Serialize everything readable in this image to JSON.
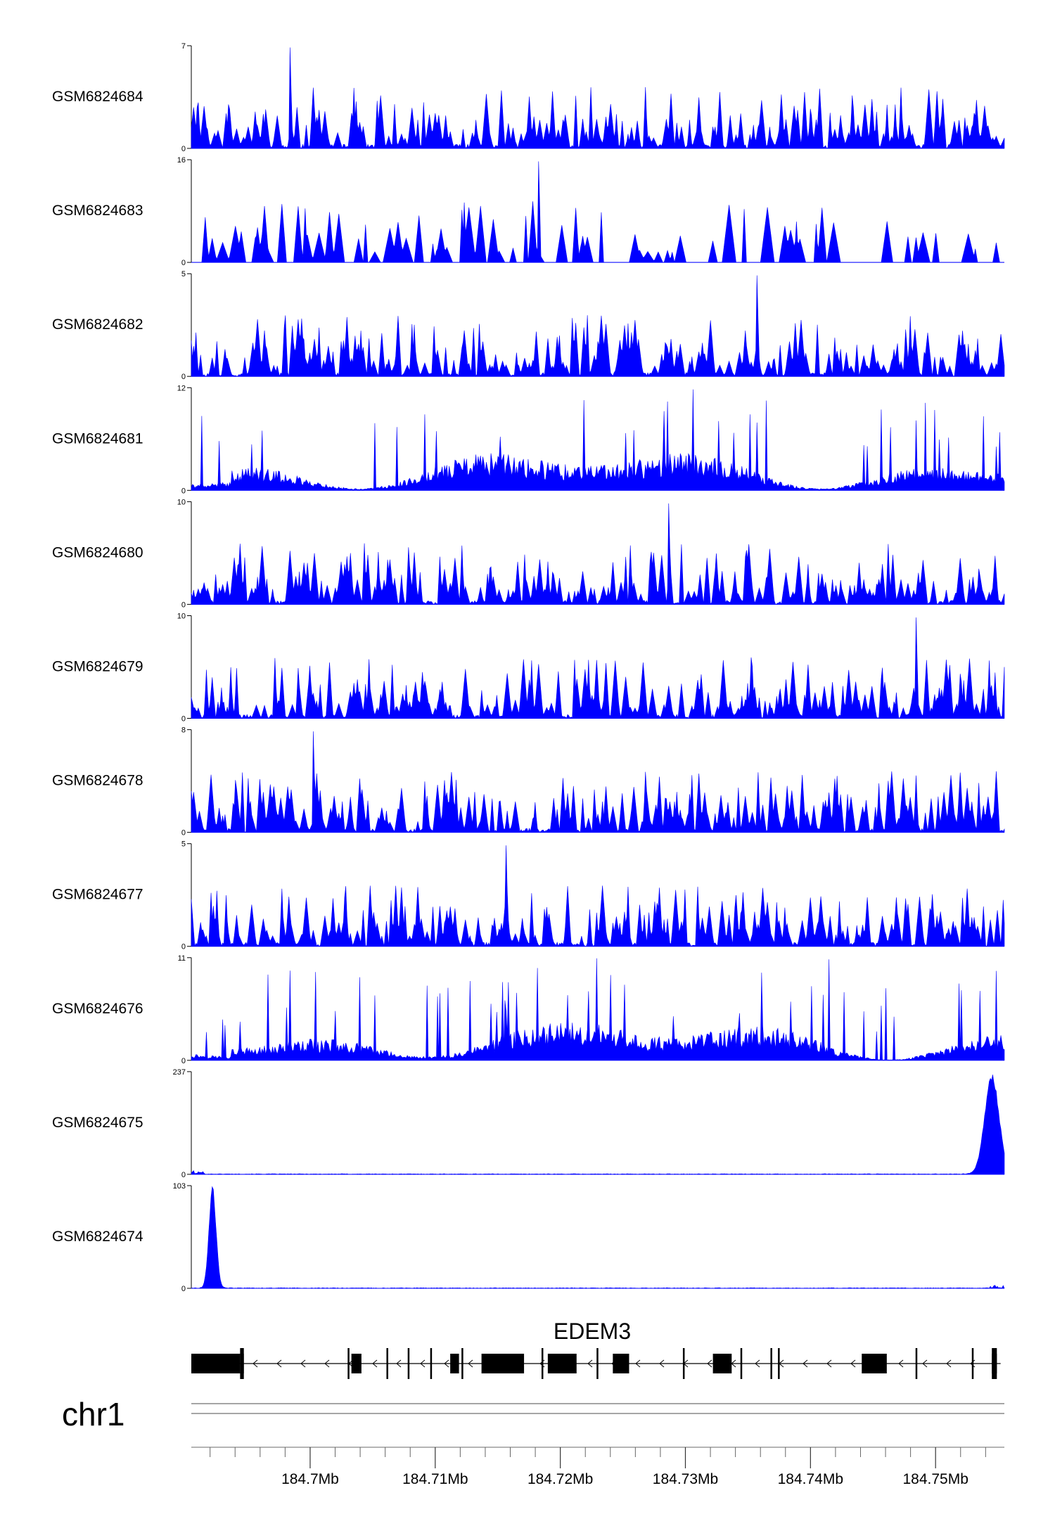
{
  "chart_data": {
    "type": "area",
    "chromosome": "chr1",
    "x_unit": "Mb",
    "xlim": [
      184.6905,
      184.7555
    ],
    "x_ticks": [
      {
        "value": 184.7,
        "label": "184.7Mb"
      },
      {
        "value": 184.71,
        "label": "184.71Mb"
      },
      {
        "value": 184.72,
        "label": "184.72Mb"
      },
      {
        "value": 184.73,
        "label": "184.73Mb"
      },
      {
        "value": 184.74,
        "label": "184.74Mb"
      },
      {
        "value": 184.75,
        "label": "184.75Mb"
      }
    ],
    "x_minor_ticks": [
      184.692,
      184.694,
      184.696,
      184.698,
      184.702,
      184.704,
      184.706,
      184.708,
      184.712,
      184.714,
      184.716,
      184.718,
      184.722,
      184.724,
      184.726,
      184.728,
      184.732,
      184.734,
      184.736,
      184.738,
      184.742,
      184.744,
      184.746,
      184.748,
      184.752,
      184.754
    ],
    "series_color": "#0000ff",
    "series": [
      {
        "name": "GSM6824684",
        "ymin": 0,
        "ymax": 7,
        "ymin_label": "0",
        "ymax_label": "7",
        "profile": "spiky",
        "seed": 11,
        "peaks": []
      },
      {
        "name": "GSM6824683",
        "ymin": 0,
        "ymax": 16,
        "ymin_label": "0",
        "ymax_label": "16",
        "profile": "sparse",
        "seed": 23,
        "peaks": []
      },
      {
        "name": "GSM6824682",
        "ymin": 0,
        "ymax": 5,
        "ymin_label": "0",
        "ymax_label": "5",
        "profile": "spiky",
        "seed": 37,
        "peaks": []
      },
      {
        "name": "GSM6824681",
        "ymin": 0,
        "ymax": 12,
        "ymin_label": "0",
        "ymax_label": "12",
        "profile": "dense",
        "seed": 41,
        "peaks": []
      },
      {
        "name": "GSM6824680",
        "ymin": 0,
        "ymax": 10,
        "ymin_label": "0",
        "ymax_label": "10",
        "profile": "spiky",
        "seed": 53,
        "peaks": []
      },
      {
        "name": "GSM6824679",
        "ymin": 0,
        "ymax": 10,
        "ymin_label": "0",
        "ymax_label": "10",
        "profile": "spiky",
        "seed": 67,
        "peaks": []
      },
      {
        "name": "GSM6824678",
        "ymin": 0,
        "ymax": 8,
        "ymin_label": "0",
        "ymax_label": "8",
        "profile": "spiky",
        "seed": 71,
        "peaks": []
      },
      {
        "name": "GSM6824677",
        "ymin": 0,
        "ymax": 5,
        "ymin_label": "0",
        "ymax_label": "5",
        "profile": "spiky",
        "seed": 83,
        "peaks": []
      },
      {
        "name": "GSM6824676",
        "ymin": 0,
        "ymax": 11,
        "ymin_label": "0",
        "ymax_label": "11",
        "profile": "dense",
        "seed": 97,
        "peaks": []
      },
      {
        "name": "GSM6824675",
        "ymin": 0,
        "ymax": 237,
        "ymin_label": "0",
        "ymax_label": "237",
        "profile": "baseline",
        "seed": 101,
        "peaks": [
          {
            "pos": 184.7545,
            "height": 237,
            "width": 0.0008
          }
        ]
      },
      {
        "name": "GSM6824674",
        "ymin": 0,
        "ymax": 103,
        "ymin_label": "0",
        "ymax_label": "103",
        "profile": "baseline",
        "seed": 113,
        "peaks": [
          {
            "pos": 184.6922,
            "height": 103,
            "width": 0.0004
          }
        ]
      }
    ],
    "gene": {
      "name": "EDEM3",
      "strand": "-",
      "start": 184.6905,
      "end": 184.7552,
      "exons": [
        {
          "start": 184.6905,
          "end": 184.6944,
          "thick": true
        },
        {
          "start": 184.6944,
          "end": 184.6947,
          "thick": true
        },
        {
          "start": 184.703,
          "end": 184.7031,
          "thick": false
        },
        {
          "start": 184.7033,
          "end": 184.7041,
          "thick": true
        },
        {
          "start": 184.7061,
          "end": 184.7062,
          "thick": false
        },
        {
          "start": 184.7078,
          "end": 184.7079,
          "thick": false
        },
        {
          "start": 184.7096,
          "end": 184.7097,
          "thick": false
        },
        {
          "start": 184.7112,
          "end": 184.7119,
          "thick": true
        },
        {
          "start": 184.7121,
          "end": 184.7122,
          "thick": false
        },
        {
          "start": 184.7137,
          "end": 184.7171,
          "thick": true
        },
        {
          "start": 184.7185,
          "end": 184.7186,
          "thick": false
        },
        {
          "start": 184.719,
          "end": 184.7213,
          "thick": true
        },
        {
          "start": 184.7229,
          "end": 184.723,
          "thick": false
        },
        {
          "start": 184.7242,
          "end": 184.7255,
          "thick": true
        },
        {
          "start": 184.7298,
          "end": 184.7299,
          "thick": false
        },
        {
          "start": 184.7322,
          "end": 184.7337,
          "thick": true
        },
        {
          "start": 184.7344,
          "end": 184.7345,
          "thick": false
        },
        {
          "start": 184.7368,
          "end": 184.7369,
          "thick": false
        },
        {
          "start": 184.7374,
          "end": 184.7375,
          "thick": false
        },
        {
          "start": 184.7441,
          "end": 184.7461,
          "thick": true
        },
        {
          "start": 184.7484,
          "end": 184.7485,
          "thick": false
        },
        {
          "start": 184.7529,
          "end": 184.753,
          "thick": false
        },
        {
          "start": 184.7545,
          "end": 184.7549,
          "thick": true
        }
      ]
    }
  }
}
